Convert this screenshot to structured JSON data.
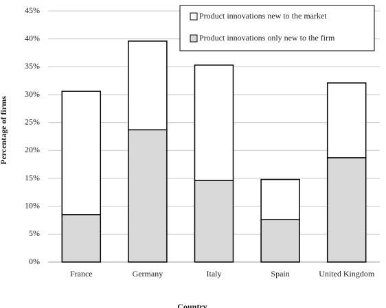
{
  "chart_data": {
    "type": "stacked-bar",
    "x_label": "Country",
    "y_label": "Percentage of firms",
    "categories": [
      "France",
      "Germany",
      "Italy",
      "Spain",
      "United Kingdom"
    ],
    "series": [
      {
        "name": "Product innovations only new to the firm",
        "color": "#d9d9d9",
        "values": [
          8.5,
          23.7,
          14.6,
          7.6,
          18.7
        ]
      },
      {
        "name": "Product innovations new to the market",
        "color": "#ffffff",
        "values": [
          22.1,
          15.9,
          20.7,
          7.2,
          13.4
        ]
      }
    ],
    "ylim": [
      0,
      45
    ],
    "yticks": [
      {
        "value": 0,
        "label": "0%"
      },
      {
        "value": 5,
        "label": "5%"
      },
      {
        "value": 10,
        "label": "10%"
      },
      {
        "value": 15,
        "label": "15%"
      },
      {
        "value": 20,
        "label": "20%"
      },
      {
        "value": 25,
        "label": "25%"
      },
      {
        "value": 30,
        "label": "30%"
      },
      {
        "value": 35,
        "label": "35%"
      },
      {
        "value": 40,
        "label": "40%"
      },
      {
        "value": 45,
        "label": "45%"
      }
    ],
    "grid": true,
    "legend": "top-right"
  }
}
